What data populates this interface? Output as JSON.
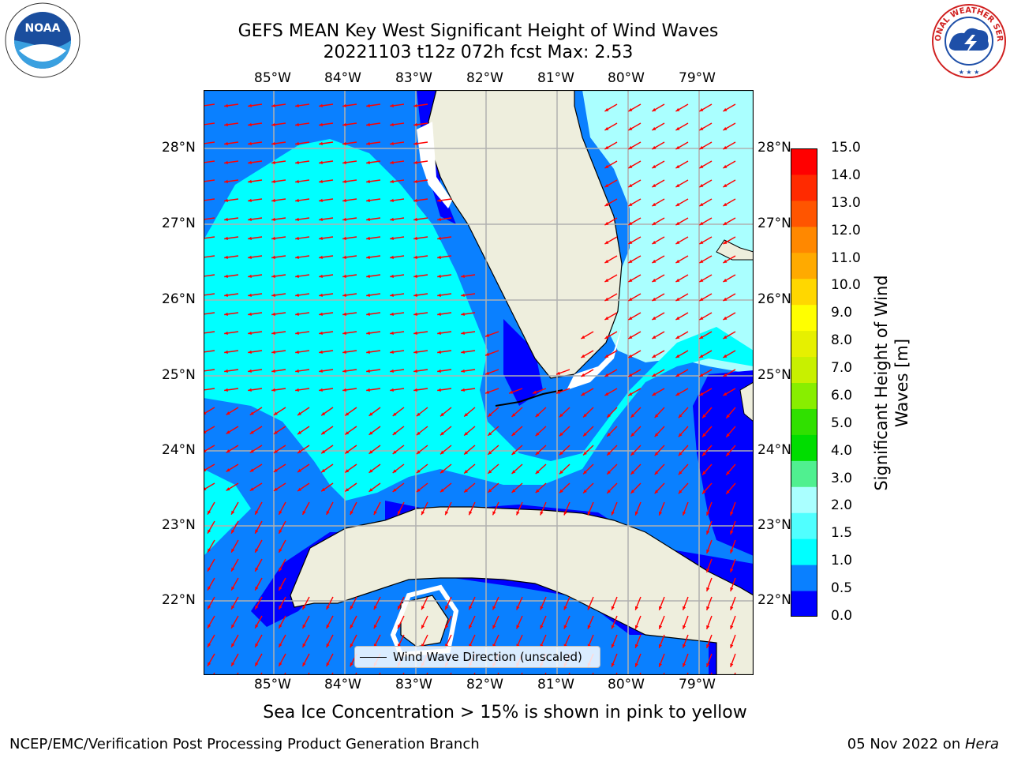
{
  "title": {
    "line1": "GEFS MEAN Key West Significant Height of Wind Waves",
    "line2": "20221103 t12z 072h fcst   Max: 2.53"
  },
  "map": {
    "lon_ticks": [
      "85°W",
      "84°W",
      "83°W",
      "82°W",
      "81°W",
      "80°W",
      "79°W"
    ],
    "lat_ticks": [
      "28°N",
      "27°N",
      "26°N",
      "25°N",
      "24°N",
      "23°N",
      "22°N"
    ],
    "legend_label": "Wind Wave Direction (unscaled)",
    "arrow_color": "#ff0000",
    "land_color": "#eeeedd"
  },
  "colorbar": {
    "label": "Significant Height of Wind Waves [m]",
    "ticks": [
      "15.0",
      "14.0",
      "13.0",
      "12.0",
      "11.0",
      "10.0",
      "9.0",
      "8.0",
      "7.0",
      "6.0",
      "5.0",
      "4.0",
      "3.0",
      "2.0",
      "1.5",
      "1.0",
      "0.5",
      "0.0"
    ],
    "colors": [
      "#0000ff",
      "#0a80ff",
      "#00ffff",
      "#50ffff",
      "#aaffff",
      "#50f090",
      "#00dd00",
      "#30e000",
      "#88ee00",
      "#c8f000",
      "#e6f000",
      "#ffff00",
      "#ffd700",
      "#ffaa00",
      "#ff8800",
      "#ff5500",
      "#ff2a00",
      "#ff0000"
    ]
  },
  "footer": {
    "ice_note": "Sea Ice Concentration > 15% is shown in pink to yellow",
    "credit": "NCEP/EMC/Verification Post Processing Product Generation Branch",
    "date": "05 Nov 2022 on ",
    "machine": "Hera"
  },
  "logos": {
    "noaa": "NOAA",
    "nws": "NATIONAL WEATHER SERVICE"
  }
}
